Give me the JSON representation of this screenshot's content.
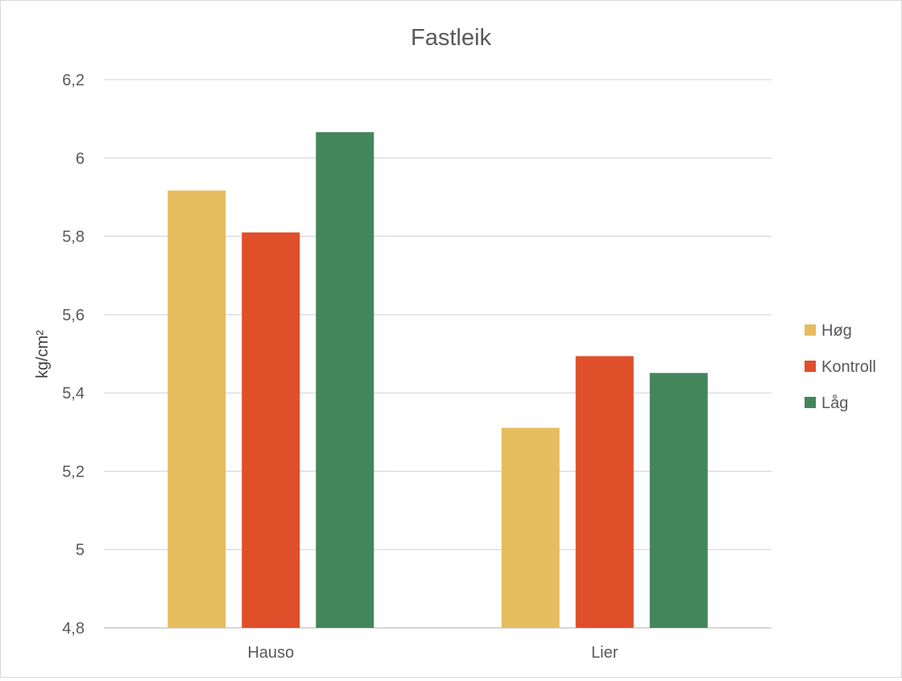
{
  "chart_data": {
    "type": "bar",
    "title": "Fastleik",
    "ylabel": "kg/cm²",
    "xlabel": "",
    "ylim": [
      4.8,
      6.2
    ],
    "ytick_step": 0.2,
    "ytick_labels": [
      "4,8",
      "5",
      "5,2",
      "5,4",
      "5,6",
      "5,8",
      "6",
      "6,2"
    ],
    "categories": [
      "Hauso",
      "Lier"
    ],
    "series": [
      {
        "name": "Høg",
        "color": "#E6BD5E",
        "values": [
          5.917,
          5.311
        ]
      },
      {
        "name": "Kontroll",
        "color": "#DF4F2A",
        "values": [
          5.81,
          5.494
        ]
      },
      {
        "name": "Låg",
        "color": "#43865C",
        "values": [
          6.066,
          5.451
        ]
      }
    ],
    "grid": true,
    "legend_position": "right"
  }
}
